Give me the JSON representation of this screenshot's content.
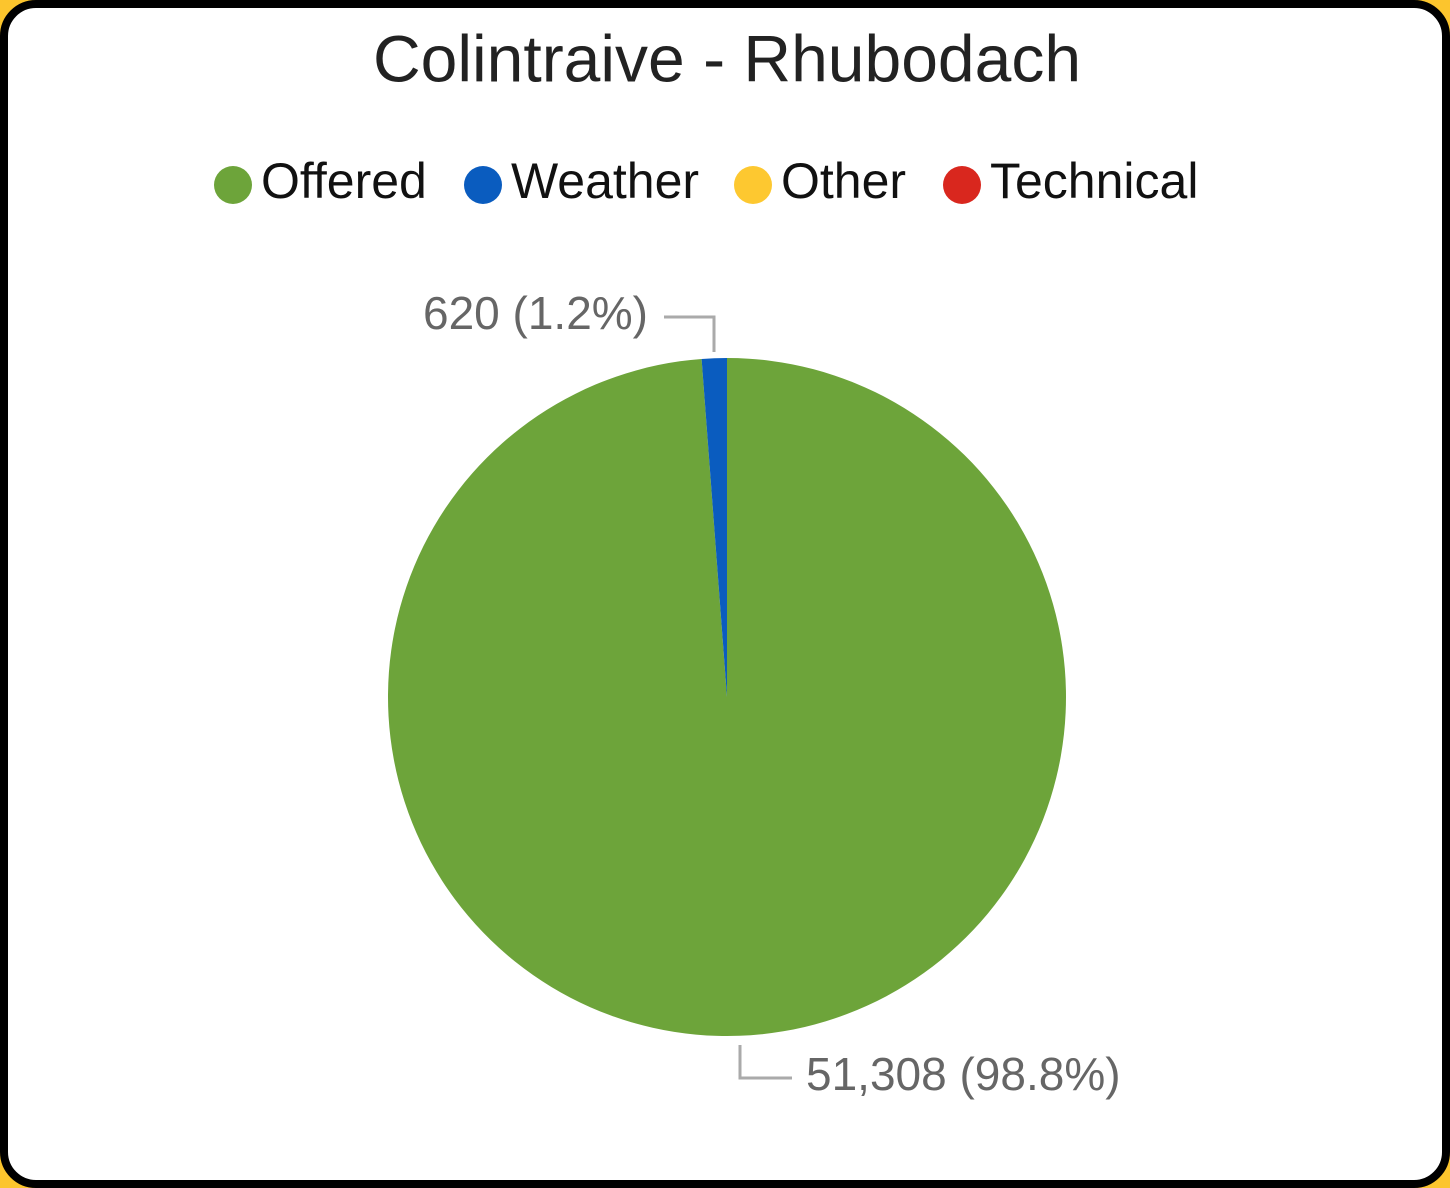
{
  "chart_data": {
    "type": "pie",
    "title": "Colintraive - Rhubodach",
    "categories": [
      "Offered",
      "Weather",
      "Other",
      "Technical"
    ],
    "values": [
      51308,
      620,
      0,
      0
    ],
    "value_labels": [
      "51,308 (98.8%)",
      "620 (1.2%)",
      null,
      null
    ],
    "colors": [
      "#6da43a",
      "#0a5cbf",
      "#fdc830",
      "#d9271e"
    ],
    "legend": "top"
  }
}
